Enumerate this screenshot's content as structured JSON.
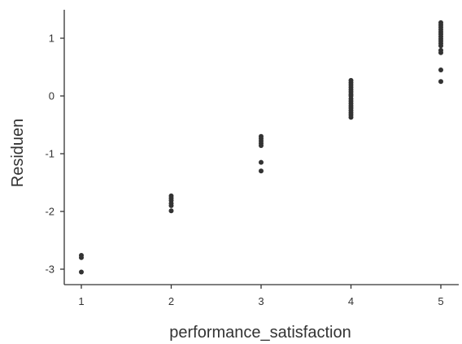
{
  "chart_data": {
    "type": "scatter",
    "xlabel": "performance_satisfaction",
    "ylabel": "Residuen",
    "xlim": [
      0.8,
      5.2
    ],
    "ylim": [
      -3.2,
      1.5
    ],
    "xticks": [
      "1",
      "2",
      "3",
      "4",
      "5"
    ],
    "yticks": [
      "-3",
      "-2",
      "-1",
      "0",
      "1"
    ],
    "grid": false,
    "point_color": "#333333",
    "series": [
      {
        "x": [
          1,
          1,
          1,
          2,
          2,
          2,
          2,
          2,
          2,
          3,
          3,
          3,
          3,
          3,
          3,
          3,
          4,
          4,
          4,
          4,
          4,
          4,
          4,
          4,
          4,
          4,
          4,
          4,
          4,
          4,
          4,
          4,
          4,
          5,
          5,
          5,
          5,
          5,
          5,
          5,
          5,
          5,
          5,
          5,
          5,
          5,
          5,
          5
        ],
        "y": [
          -2.76,
          -2.8,
          -3.05,
          -1.73,
          -1.77,
          -1.81,
          -1.86,
          -1.9,
          -1.99,
          -0.7,
          -0.74,
          -0.78,
          -0.82,
          -0.86,
          -1.15,
          -1.3,
          0.27,
          0.23,
          0.19,
          0.15,
          0.11,
          0.07,
          0.03,
          0.0,
          -0.05,
          -0.09,
          -0.13,
          -0.17,
          -0.21,
          -0.25,
          -0.29,
          -0.33,
          -0.37,
          1.27,
          1.23,
          1.19,
          1.15,
          1.11,
          1.07,
          1.03,
          0.99,
          0.95,
          0.91,
          0.87,
          0.79,
          0.75,
          0.45,
          0.25
        ]
      }
    ]
  }
}
